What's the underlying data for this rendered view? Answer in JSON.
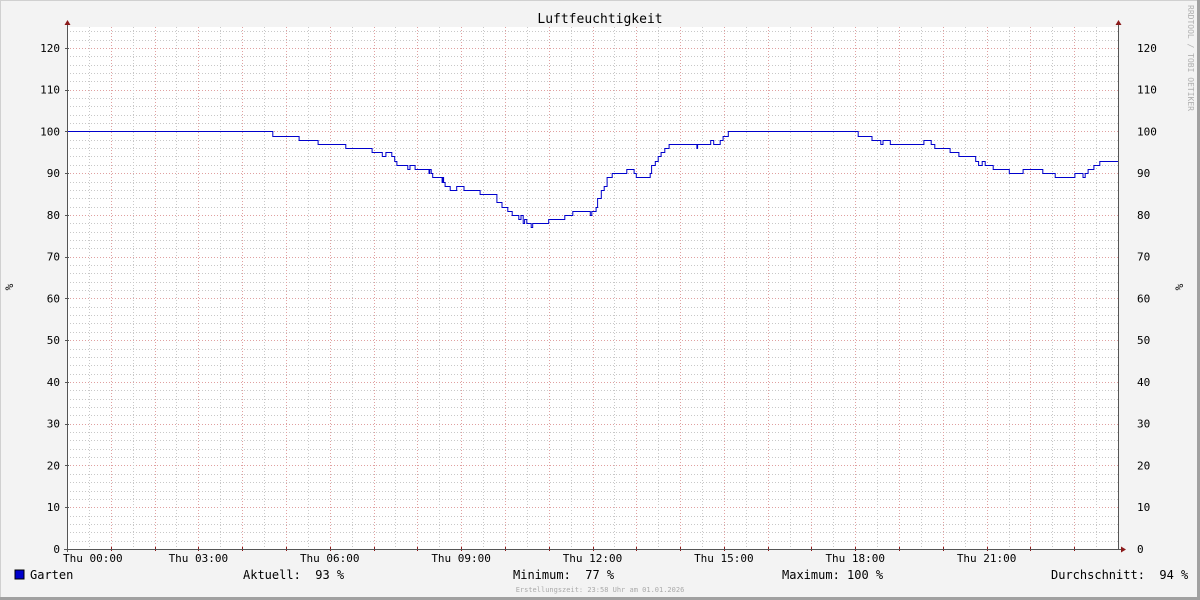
{
  "chart_data": {
    "type": "line",
    "title": "Luftfeuchtigkeit",
    "ylabel": "%",
    "ylim": [
      0,
      125
    ],
    "yticks": [
      0,
      10,
      20,
      30,
      40,
      50,
      60,
      70,
      80,
      90,
      100,
      110,
      120
    ],
    "xlim": [
      "00:00",
      "24:00"
    ],
    "xtick_labels": [
      "Thu 00:00",
      "Thu 03:00",
      "Thu 06:00",
      "Thu 09:00",
      "Thu 12:00",
      "Thu 15:00",
      "Thu 18:00",
      "Thu 21:00"
    ],
    "grid": true,
    "line_style": "step",
    "series": [
      {
        "name": "Garten",
        "color": "#0000cc",
        "points": [
          [
            "00:00",
            100
          ],
          [
            "04:42",
            99
          ],
          [
            "05:18",
            98
          ],
          [
            "05:44",
            97
          ],
          [
            "06:22",
            96
          ],
          [
            "06:58",
            95
          ],
          [
            "07:12",
            94
          ],
          [
            "07:17",
            95
          ],
          [
            "07:25",
            94
          ],
          [
            "07:29",
            93
          ],
          [
            "07:32",
            92
          ],
          [
            "07:47",
            91
          ],
          [
            "07:50",
            92
          ],
          [
            "07:57",
            91
          ],
          [
            "08:16",
            90
          ],
          [
            "08:17",
            91
          ],
          [
            "08:19",
            90
          ],
          [
            "08:21",
            89
          ],
          [
            "08:34",
            88
          ],
          [
            "08:35",
            89
          ],
          [
            "08:36",
            88
          ],
          [
            "08:38",
            87
          ],
          [
            "08:45",
            86
          ],
          [
            "08:54",
            87
          ],
          [
            "09:04",
            86
          ],
          [
            "09:26",
            85
          ],
          [
            "09:49",
            83
          ],
          [
            "09:56",
            82
          ],
          [
            "10:04",
            81
          ],
          [
            "10:10",
            80
          ],
          [
            "10:19",
            79
          ],
          [
            "10:22",
            80
          ],
          [
            "10:25",
            78
          ],
          [
            "10:27",
            79
          ],
          [
            "10:30",
            78
          ],
          [
            "10:36",
            77
          ],
          [
            "10:38",
            78
          ],
          [
            "11:00",
            79
          ],
          [
            "11:22",
            80
          ],
          [
            "11:33",
            81
          ],
          [
            "11:57",
            80
          ],
          [
            "11:59",
            81
          ],
          [
            "12:05",
            82
          ],
          [
            "12:07",
            84
          ],
          [
            "12:12",
            86
          ],
          [
            "12:16",
            87
          ],
          [
            "12:20",
            89
          ],
          [
            "12:27",
            90
          ],
          [
            "12:47",
            91
          ],
          [
            "12:57",
            90
          ],
          [
            "13:00",
            89
          ],
          [
            "13:19",
            90
          ],
          [
            "13:21",
            92
          ],
          [
            "13:26",
            93
          ],
          [
            "13:30",
            94
          ],
          [
            "13:34",
            95
          ],
          [
            "13:39",
            96
          ],
          [
            "13:45",
            97
          ],
          [
            "14:23",
            96
          ],
          [
            "14:24",
            97
          ],
          [
            "14:42",
            98
          ],
          [
            "14:46",
            97
          ],
          [
            "14:55",
            98
          ],
          [
            "14:59",
            99
          ],
          [
            "15:06",
            100
          ],
          [
            "18:04",
            99
          ],
          [
            "18:23",
            98
          ],
          [
            "18:35",
            97
          ],
          [
            "18:38",
            98
          ],
          [
            "18:48",
            97
          ],
          [
            "19:34",
            98
          ],
          [
            "19:44",
            97
          ],
          [
            "19:49",
            96
          ],
          [
            "20:10",
            95
          ],
          [
            "20:22",
            94
          ],
          [
            "20:45",
            93
          ],
          [
            "20:49",
            92
          ],
          [
            "20:54",
            93
          ],
          [
            "20:58",
            92
          ],
          [
            "21:09",
            91
          ],
          [
            "21:31",
            90
          ],
          [
            "21:50",
            91
          ],
          [
            "22:17",
            90
          ],
          [
            "22:34",
            89
          ],
          [
            "23:01",
            90
          ],
          [
            "23:12",
            89
          ],
          [
            "23:15",
            90
          ],
          [
            "23:19",
            91
          ],
          [
            "23:27",
            92
          ],
          [
            "23:35",
            93
          ],
          [
            "24:00",
            93
          ]
        ]
      }
    ]
  },
  "legend": {
    "series_name": "Garten",
    "current": "Aktuell:  93 %",
    "minimum": "Minimum:  77 %",
    "maximum": "Maximum: 100 %",
    "average": "Durchschnitt:  94 %"
  },
  "watermark": "RRDTOOL / TOBI OETIKER",
  "footer": "Erstellungszeit: 23:58 Uhr am 01.01.2026",
  "colors": {
    "series": "#0000cc",
    "major_grid": "#e0a0a0",
    "minor_grid": "#c8c8c8",
    "axis": "#555555",
    "arrow": "#8b1a1a"
  }
}
